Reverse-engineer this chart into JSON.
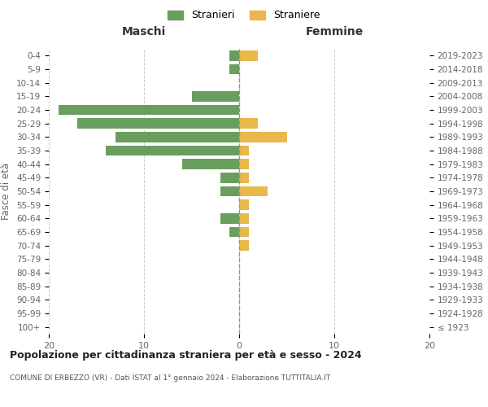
{
  "age_groups": [
    "100+",
    "95-99",
    "90-94",
    "85-89",
    "80-84",
    "75-79",
    "70-74",
    "65-69",
    "60-64",
    "55-59",
    "50-54",
    "45-49",
    "40-44",
    "35-39",
    "30-34",
    "25-29",
    "20-24",
    "15-19",
    "10-14",
    "5-9",
    "0-4"
  ],
  "birth_years": [
    "≤ 1923",
    "1924-1928",
    "1929-1933",
    "1934-1938",
    "1939-1943",
    "1944-1948",
    "1949-1953",
    "1954-1958",
    "1959-1963",
    "1964-1968",
    "1969-1973",
    "1974-1978",
    "1979-1983",
    "1984-1988",
    "1989-1993",
    "1994-1998",
    "1999-2003",
    "2004-2008",
    "2009-2013",
    "2014-2018",
    "2019-2023"
  ],
  "males": [
    0,
    0,
    0,
    0,
    0,
    0,
    0,
    1,
    2,
    0,
    2,
    2,
    6,
    14,
    13,
    17,
    19,
    5,
    0,
    1,
    1
  ],
  "females": [
    0,
    0,
    0,
    0,
    0,
    0,
    1,
    1,
    1,
    1,
    3,
    1,
    1,
    1,
    5,
    2,
    0,
    0,
    0,
    0,
    2
  ],
  "male_color": "#6a9e5e",
  "female_color": "#e8b84b",
  "title": "Popolazione per cittadinanza straniera per età e sesso - 2024",
  "subtitle": "COMUNE DI ERBEZZO (VR) - Dati ISTAT al 1° gennaio 2024 - Elaborazione TUTTITALIA.IT",
  "ylabel_left": "Fasce di età",
  "legend_male": "Stranieri",
  "legend_female": "Straniere",
  "xlim": 20,
  "bg_color": "#ffffff",
  "grid_color": "#cccccc",
  "label_maschi": "Maschi",
  "label_femmine": "Femmine"
}
